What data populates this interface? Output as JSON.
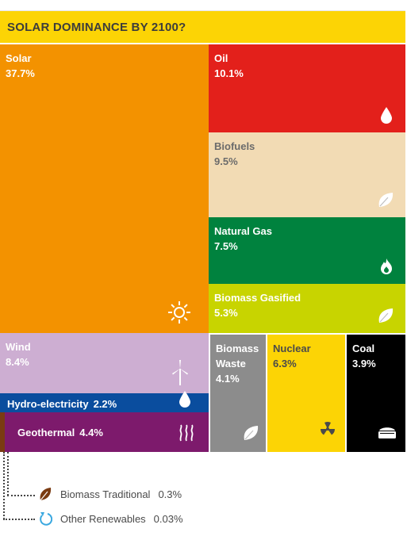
{
  "title": "SOLAR DOMINANCE BY 2100?",
  "chart_data": {
    "type": "treemap",
    "title": "SOLAR DOMINANCE BY 2100?",
    "unit": "%",
    "segments": [
      {
        "key": "solar",
        "name": "Solar",
        "value_label": "37.7%",
        "value": 37.7,
        "color": "#f39200",
        "icon": "sun-icon"
      },
      {
        "key": "oil",
        "name": "Oil",
        "value_label": "10.1%",
        "value": 10.1,
        "color": "#e3201b",
        "icon": "droplet-icon"
      },
      {
        "key": "biofuels",
        "name": "Biofuels",
        "value_label": "9.5%",
        "value": 9.5,
        "color": "#f2dbb4",
        "icon": "leaf-icon"
      },
      {
        "key": "natural_gas",
        "name": "Natural Gas",
        "value_label": "7.5%",
        "value": 7.5,
        "color": "#00823e",
        "icon": "flame-icon"
      },
      {
        "key": "biomass_gasified",
        "name": "Biomass Gasified",
        "value_label": "5.3%",
        "value": 5.3,
        "color": "#c8d400",
        "icon": "leaf-icon"
      },
      {
        "key": "wind",
        "name": "Wind",
        "value_label": "8.4%",
        "value": 8.4,
        "color": "#cdaed2",
        "icon": "wind-turbine-icon"
      },
      {
        "key": "hydro",
        "name": "Hydro-electricity",
        "value_label": "2.2%",
        "value": 2.2,
        "color": "#0a4d9e",
        "icon": "droplet-icon"
      },
      {
        "key": "geothermal",
        "name": "Geothermal",
        "value_label": "4.4%",
        "value": 4.4,
        "color": "#7d1a6c",
        "icon": "heat-waves-icon"
      },
      {
        "key": "biomass_waste",
        "name": "Biomass Waste",
        "value_label": "4.1%",
        "value": 4.1,
        "color": "#8c8c8c",
        "icon": "leaf-icon"
      },
      {
        "key": "nuclear",
        "name": "Nuclear",
        "value_label": "6.3%",
        "value": 6.3,
        "color": "#fcd405",
        "icon": "radiation-icon"
      },
      {
        "key": "coal",
        "name": "Coal",
        "value_label": "3.9%",
        "value": 3.9,
        "color": "#000000",
        "icon": "coal-cart-icon"
      }
    ],
    "small_segments": [
      {
        "key": "biomass_traditional",
        "name": "Biomass Traditional",
        "value_label": "0.3%",
        "value": 0.3,
        "color": "#7a3b12",
        "icon": "leaf-icon"
      },
      {
        "key": "other_renewables",
        "name": "Other Renewables",
        "value_label": "0.03%",
        "value": 0.03,
        "color": "#3aa8e0",
        "icon": "refresh-icon"
      }
    ]
  }
}
